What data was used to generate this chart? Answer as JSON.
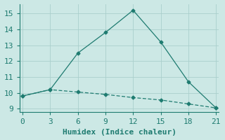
{
  "xlabel": "Humidex (Indice chaleur)",
  "background_color": "#cce8e5",
  "plot_bg_color": "#cce8e5",
  "grid_color": "#aacfcc",
  "line_color": "#1e7b70",
  "x_line1": [
    0,
    3,
    6,
    9,
    12,
    15,
    18,
    21
  ],
  "y_line1": [
    9.8,
    10.2,
    12.5,
    13.8,
    15.2,
    13.2,
    10.7,
    9.05
  ],
  "x_line2": [
    0,
    3,
    6,
    9,
    12,
    15,
    18,
    21
  ],
  "y_line2": [
    9.8,
    10.2,
    10.05,
    9.9,
    9.7,
    9.55,
    9.3,
    9.05
  ],
  "xlim": [
    -0.3,
    21.3
  ],
  "ylim": [
    8.8,
    15.6
  ],
  "xticks": [
    0,
    3,
    6,
    9,
    12,
    15,
    18,
    21
  ],
  "yticks": [
    9,
    10,
    11,
    12,
    13,
    14,
    15
  ],
  "fontsize": 8,
  "label_fontsize": 8,
  "tick_color": "#1e7b70",
  "text_color": "#1e7b70",
  "spine_color": "#1e7b70",
  "marker": "D",
  "markersize": 2.5,
  "linewidth": 0.9
}
